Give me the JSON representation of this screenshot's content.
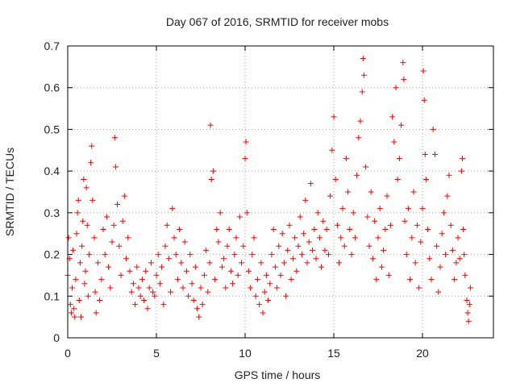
{
  "chart_data": {
    "type": "scatter",
    "title": "Day 067 of 2016, SRMTID for receiver mobs",
    "xlabel": "GPS time / hours",
    "ylabel": "SRMTID / TECUs",
    "xlim": [
      0,
      24
    ],
    "ylim": [
      0,
      0.7
    ],
    "xticks": [
      0,
      5,
      10,
      15,
      20
    ],
    "xtick_labels": [
      "0",
      "5",
      "10",
      "15",
      "20"
    ],
    "yticks": [
      0,
      0.1,
      0.2,
      0.3,
      0.4,
      0.5,
      0.6,
      0.7
    ],
    "ytick_labels": [
      "0",
      "0.1",
      "0.2",
      "0.3",
      "0.4",
      "0.5",
      "0.6",
      "0.7"
    ],
    "grid": true,
    "marker": "+",
    "color": "#ff0000",
    "series": [
      {
        "name": "SRMTID",
        "points": [
          [
            0.0,
            0.15
          ],
          [
            0.05,
            0.24
          ],
          [
            0.1,
            0.19
          ],
          [
            0.15,
            0.08
          ],
          [
            0.2,
            0.06
          ],
          [
            0.25,
            0.12
          ],
          [
            0.3,
            0.21
          ],
          [
            0.35,
            0.07
          ],
          [
            0.4,
            0.05
          ],
          [
            0.45,
            0.14
          ],
          [
            0.5,
            0.25
          ],
          [
            0.55,
            0.3
          ],
          [
            0.6,
            0.33
          ],
          [
            0.65,
            0.09
          ],
          [
            0.7,
            0.18
          ],
          [
            0.75,
            0.05
          ],
          [
            0.8,
            0.22
          ],
          [
            0.85,
            0.28
          ],
          [
            0.9,
            0.38
          ],
          [
            0.95,
            0.13
          ],
          [
            1.0,
            0.16
          ],
          [
            1.05,
            0.36
          ],
          [
            1.1,
            0.27
          ],
          [
            1.15,
            0.1
          ],
          [
            1.2,
            0.2
          ],
          [
            1.3,
            0.42
          ],
          [
            1.35,
            0.46
          ],
          [
            1.4,
            0.33
          ],
          [
            1.5,
            0.24
          ],
          [
            1.55,
            0.11
          ],
          [
            1.6,
            0.06
          ],
          [
            1.7,
            0.18
          ],
          [
            1.8,
            0.09
          ],
          [
            1.9,
            0.14
          ],
          [
            2.0,
            0.26
          ],
          [
            2.1,
            0.2
          ],
          [
            2.2,
            0.29
          ],
          [
            2.3,
            0.17
          ],
          [
            2.4,
            0.12
          ],
          [
            2.5,
            0.23
          ],
          [
            2.6,
            0.27
          ],
          [
            2.65,
            0.48
          ],
          [
            2.7,
            0.41
          ],
          [
            2.8,
            0.32
          ],
          [
            2.9,
            0.22
          ],
          [
            3.0,
            0.15
          ],
          [
            3.1,
            0.28
          ],
          [
            3.2,
            0.34
          ],
          [
            3.3,
            0.19
          ],
          [
            3.4,
            0.24
          ],
          [
            3.5,
            0.16
          ],
          [
            3.6,
            0.11
          ],
          [
            3.7,
            0.13
          ],
          [
            3.8,
            0.08
          ],
          [
            3.9,
            0.17
          ],
          [
            4.0,
            0.12
          ],
          [
            4.1,
            0.1
          ],
          [
            4.2,
            0.14
          ],
          [
            4.3,
            0.09
          ],
          [
            4.4,
            0.16
          ],
          [
            4.5,
            0.07
          ],
          [
            4.6,
            0.12
          ],
          [
            4.7,
            0.18
          ],
          [
            4.8,
            0.11
          ],
          [
            4.9,
            0.1
          ],
          [
            5.0,
            0.15
          ],
          [
            5.1,
            0.2
          ],
          [
            5.2,
            0.13
          ],
          [
            5.3,
            0.17
          ],
          [
            5.4,
            0.08
          ],
          [
            5.5,
            0.22
          ],
          [
            5.6,
            0.27
          ],
          [
            5.7,
            0.19
          ],
          [
            5.8,
            0.11
          ],
          [
            5.9,
            0.31
          ],
          [
            6.0,
            0.24
          ],
          [
            6.1,
            0.2
          ],
          [
            6.2,
            0.14
          ],
          [
            6.3,
            0.26
          ],
          [
            6.4,
            0.18
          ],
          [
            6.5,
            0.12
          ],
          [
            6.6,
            0.23
          ],
          [
            6.7,
            0.16
          ],
          [
            6.8,
            0.1
          ],
          [
            6.9,
            0.2
          ],
          [
            7.0,
            0.13
          ],
          [
            7.1,
            0.09
          ],
          [
            7.2,
            0.17
          ],
          [
            7.3,
            0.07
          ],
          [
            7.4,
            0.05
          ],
          [
            7.5,
            0.12
          ],
          [
            7.6,
            0.08
          ],
          [
            7.7,
            0.15
          ],
          [
            7.8,
            0.21
          ],
          [
            7.9,
            0.11
          ],
          [
            8.0,
            0.18
          ],
          [
            8.05,
            0.51
          ],
          [
            8.1,
            0.38
          ],
          [
            8.2,
            0.4
          ],
          [
            8.3,
            0.14
          ],
          [
            8.4,
            0.26
          ],
          [
            8.5,
            0.23
          ],
          [
            8.6,
            0.3
          ],
          [
            8.7,
            0.17
          ],
          [
            8.8,
            0.19
          ],
          [
            8.9,
            0.12
          ],
          [
            9.0,
            0.22
          ],
          [
            9.1,
            0.26
          ],
          [
            9.2,
            0.16
          ],
          [
            9.3,
            0.13
          ],
          [
            9.4,
            0.2
          ],
          [
            9.5,
            0.24
          ],
          [
            9.6,
            0.15
          ],
          [
            9.7,
            0.29
          ],
          [
            9.8,
            0.18
          ],
          [
            9.9,
            0.22
          ],
          [
            10.0,
            0.43
          ],
          [
            10.05,
            0.47
          ],
          [
            10.1,
            0.3
          ],
          [
            10.2,
            0.16
          ],
          [
            10.3,
            0.12
          ],
          [
            10.4,
            0.2
          ],
          [
            10.5,
            0.24
          ],
          [
            10.6,
            0.1
          ],
          [
            10.7,
            0.14
          ],
          [
            10.8,
            0.08
          ],
          [
            10.9,
            0.18
          ],
          [
            11.0,
            0.06
          ],
          [
            11.1,
            0.11
          ],
          [
            11.2,
            0.15
          ],
          [
            11.3,
            0.09
          ],
          [
            11.4,
            0.13
          ],
          [
            11.5,
            0.2
          ],
          [
            11.6,
            0.26
          ],
          [
            11.7,
            0.17
          ],
          [
            11.8,
            0.12
          ],
          [
            11.9,
            0.22
          ],
          [
            12.0,
            0.15
          ],
          [
            12.1,
            0.25
          ],
          [
            12.2,
            0.18
          ],
          [
            12.3,
            0.1
          ],
          [
            12.4,
            0.21
          ],
          [
            12.5,
            0.27
          ],
          [
            12.6,
            0.14
          ],
          [
            12.7,
            0.19
          ],
          [
            12.8,
            0.24
          ],
          [
            12.9,
            0.16
          ],
          [
            13.0,
            0.22
          ],
          [
            13.1,
            0.29
          ],
          [
            13.2,
            0.2
          ],
          [
            13.3,
            0.25
          ],
          [
            13.4,
            0.33
          ],
          [
            13.5,
            0.18
          ],
          [
            13.6,
            0.23
          ],
          [
            13.7,
            0.37
          ],
          [
            13.8,
            0.21
          ],
          [
            13.9,
            0.26
          ],
          [
            14.0,
            0.19
          ],
          [
            14.1,
            0.3
          ],
          [
            14.2,
            0.24
          ],
          [
            14.3,
            0.17
          ],
          [
            14.4,
            0.28
          ],
          [
            14.5,
            0.21
          ],
          [
            14.6,
            0.26
          ],
          [
            14.7,
            0.2
          ],
          [
            14.8,
            0.34
          ],
          [
            14.9,
            0.45
          ],
          [
            15.0,
            0.53
          ],
          [
            15.1,
            0.38
          ],
          [
            15.2,
            0.27
          ],
          [
            15.3,
            0.18
          ],
          [
            15.4,
            0.24
          ],
          [
            15.5,
            0.31
          ],
          [
            15.6,
            0.22
          ],
          [
            15.7,
            0.43
          ],
          [
            15.8,
            0.35
          ],
          [
            15.9,
            0.26
          ],
          [
            16.0,
            0.2
          ],
          [
            16.1,
            0.3
          ],
          [
            16.2,
            0.24
          ],
          [
            16.3,
            0.39
          ],
          [
            16.4,
            0.48
          ],
          [
            16.5,
            0.52
          ],
          [
            16.6,
            0.59
          ],
          [
            16.65,
            0.67
          ],
          [
            16.7,
            0.63
          ],
          [
            16.8,
            0.41
          ],
          [
            16.9,
            0.29
          ],
          [
            17.0,
            0.22
          ],
          [
            17.1,
            0.35
          ],
          [
            17.2,
            0.19
          ],
          [
            17.3,
            0.28
          ],
          [
            17.4,
            0.14
          ],
          [
            17.5,
            0.24
          ],
          [
            17.6,
            0.31
          ],
          [
            17.7,
            0.17
          ],
          [
            17.8,
            0.21
          ],
          [
            17.9,
            0.26
          ],
          [
            18.0,
            0.34
          ],
          [
            18.1,
            0.15
          ],
          [
            18.2,
            0.27
          ],
          [
            18.3,
            0.53
          ],
          [
            18.4,
            0.47
          ],
          [
            18.5,
            0.6
          ],
          [
            18.6,
            0.38
          ],
          [
            18.7,
            0.43
          ],
          [
            18.8,
            0.51
          ],
          [
            18.9,
            0.66
          ],
          [
            18.95,
            0.62
          ],
          [
            19.0,
            0.28
          ],
          [
            19.1,
            0.2
          ],
          [
            19.2,
            0.31
          ],
          [
            19.3,
            0.14
          ],
          [
            19.4,
            0.24
          ],
          [
            19.5,
            0.35
          ],
          [
            19.6,
            0.18
          ],
          [
            19.7,
            0.27
          ],
          [
            19.8,
            0.12
          ],
          [
            19.9,
            0.23
          ],
          [
            20.0,
            0.31
          ],
          [
            20.05,
            0.64
          ],
          [
            20.1,
            0.57
          ],
          [
            20.15,
            0.44
          ],
          [
            20.2,
            0.38
          ],
          [
            20.3,
            0.26
          ],
          [
            20.4,
            0.19
          ],
          [
            20.5,
            0.14
          ],
          [
            20.6,
            0.5
          ],
          [
            20.7,
            0.44
          ],
          [
            20.8,
            0.22
          ],
          [
            20.9,
            0.11
          ],
          [
            21.0,
            0.17
          ],
          [
            21.1,
            0.25
          ],
          [
            21.2,
            0.3
          ],
          [
            21.3,
            0.2
          ],
          [
            21.4,
            0.34
          ],
          [
            21.5,
            0.39
          ],
          [
            21.6,
            0.27
          ],
          [
            21.7,
            0.21
          ],
          [
            21.8,
            0.14
          ],
          [
            21.9,
            0.18
          ],
          [
            22.0,
            0.24
          ],
          [
            22.1,
            0.19
          ],
          [
            22.2,
            0.4
          ],
          [
            22.25,
            0.43
          ],
          [
            22.3,
            0.26
          ],
          [
            22.35,
            0.2
          ],
          [
            22.4,
            0.15
          ],
          [
            22.5,
            0.09
          ],
          [
            22.55,
            0.06
          ],
          [
            22.6,
            0.04
          ],
          [
            22.65,
            0.08
          ],
          [
            22.7,
            0.12
          ]
        ]
      }
    ]
  }
}
